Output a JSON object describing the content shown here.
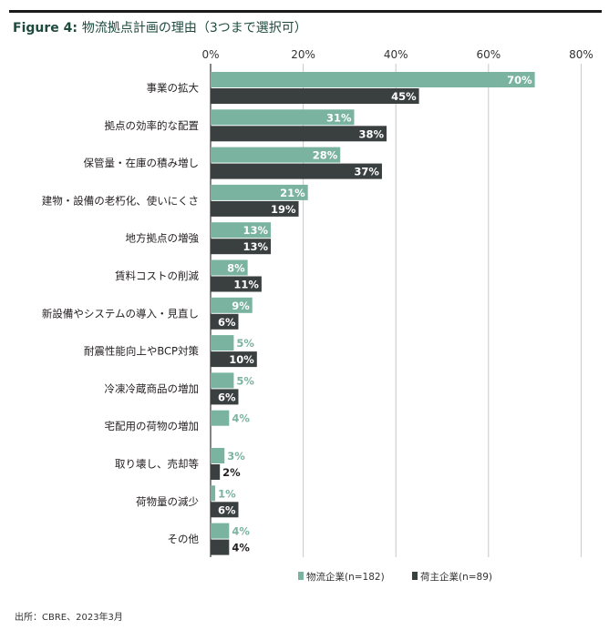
{
  "figure": {
    "title_prefix": "Figure 4:",
    "title_text": "物流拠点計画の理由（3つまで選択可）",
    "source": "出所：CBRE、2023年3月"
  },
  "colors": {
    "logistics": "#7ab3a0",
    "shipper": "#3a3f3f",
    "title": "#1e4b3e",
    "grid": "#c8c8c8"
  },
  "chart_data": {
    "type": "bar",
    "orientation": "horizontal",
    "title": "物流拠点計画の理由（3つまで選択可）",
    "xlim": [
      0,
      80
    ],
    "ticks": [
      0,
      20,
      40,
      60,
      80
    ],
    "tick_labels": [
      "0%",
      "20%",
      "40%",
      "60%",
      "80%"
    ],
    "grid": true,
    "legend_position": "bottom-right",
    "categories": [
      "事業の拡大",
      "拠点の効率的な配置",
      "保管量・在庫の積み増し",
      "建物・設備の老朽化、使いにくさ",
      "地方拠点の増強",
      "賃料コストの削減",
      "新設備やシステムの導入・見直し",
      "耐震性能向上やBCP対策",
      "冷凍冷蔵商品の増加",
      "宅配用の荷物の増加",
      "取り壊し、売却等",
      "荷物量の減少",
      "その他"
    ],
    "series": [
      {
        "name": "物流企業(n=182)",
        "values": [
          70,
          31,
          28,
          21,
          13,
          8,
          9,
          5,
          5,
          4,
          3,
          1,
          4
        ],
        "labels": [
          "70%",
          "31%",
          "28%",
          "21%",
          "13%",
          "8%",
          "9%",
          "5%",
          "5%",
          "4%",
          "3%",
          "1%",
          "4%"
        ]
      },
      {
        "name": "荷主企業(n=89)",
        "values": [
          45,
          38,
          37,
          19,
          13,
          11,
          6,
          10,
          6,
          null,
          2,
          6,
          4
        ],
        "labels": [
          "45%",
          "38%",
          "37%",
          "19%",
          "13%",
          "11%",
          "6%",
          "10%",
          "6%",
          null,
          "2%",
          "6%",
          "4%"
        ]
      }
    ]
  }
}
